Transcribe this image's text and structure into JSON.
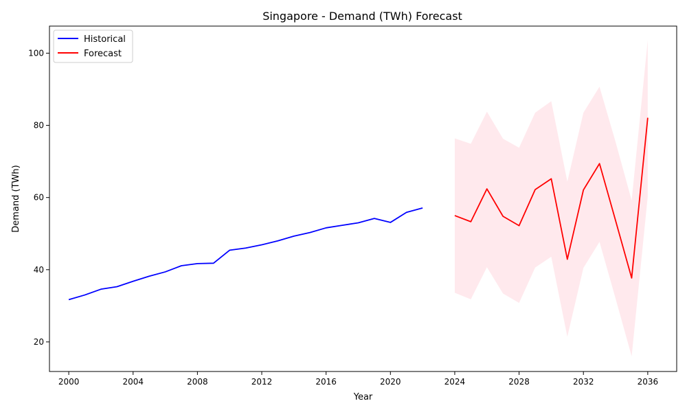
{
  "chart_data": {
    "type": "line",
    "title": "Singapore - Demand (TWh) Forecast",
    "xlabel": "Year",
    "ylabel": "Demand (TWh)",
    "xlim": [
      1998.8,
      2037.8
    ],
    "ylim": [
      11.8,
      107.5
    ],
    "x_ticks": [
      2000,
      2004,
      2008,
      2012,
      2016,
      2020,
      2024,
      2028,
      2032,
      2036
    ],
    "y_ticks": [
      20,
      40,
      60,
      80,
      100
    ],
    "grid": false,
    "legend_position": "top-left",
    "series": [
      {
        "name": "Historical",
        "color": "#0000ff",
        "x": [
          2000,
          2001,
          2002,
          2003,
          2004,
          2005,
          2006,
          2007,
          2008,
          2009,
          2010,
          2011,
          2012,
          2013,
          2014,
          2015,
          2016,
          2017,
          2018,
          2019,
          2020,
          2021,
          2022
        ],
        "y": [
          31.7,
          33.0,
          34.6,
          35.3,
          36.8,
          38.2,
          39.4,
          41.1,
          41.7,
          41.8,
          45.4,
          46.0,
          46.9,
          48.0,
          49.3,
          50.3,
          51.6,
          52.3,
          53.0,
          54.2,
          53.1,
          55.9,
          57.1
        ]
      },
      {
        "name": "Forecast",
        "color": "#ff0000",
        "x": [
          2024,
          2025,
          2026,
          2027,
          2028,
          2029,
          2030,
          2031,
          2032,
          2033,
          2034,
          2035,
          2036
        ],
        "y": [
          55.0,
          53.3,
          62.4,
          54.8,
          52.2,
          62.2,
          65.2,
          42.9,
          62.1,
          69.4,
          53.6,
          37.7,
          82.1
        ],
        "lower": [
          33.6,
          31.8,
          40.7,
          33.4,
          30.8,
          40.6,
          43.6,
          21.4,
          40.5,
          47.7,
          32.0,
          16.0,
          60.3
        ],
        "upper": [
          76.4,
          74.9,
          83.8,
          76.3,
          73.8,
          83.5,
          86.7,
          64.4,
          83.5,
          90.7,
          75.4,
          59.2,
          103.6
        ],
        "band_color": "#ffc0cb"
      }
    ]
  }
}
